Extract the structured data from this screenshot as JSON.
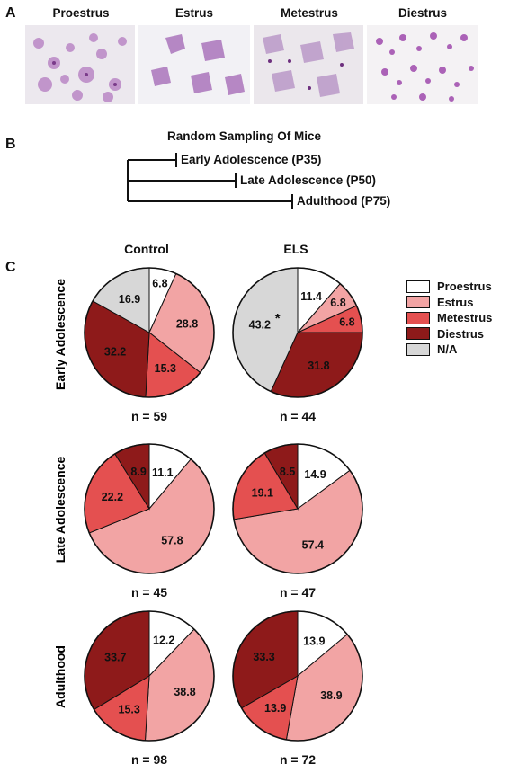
{
  "panel_a": {
    "letter": "A",
    "stages": [
      "Proestrus",
      "Estrus",
      "Metestrus",
      "Diestrus"
    ]
  },
  "panel_b": {
    "letter": "B",
    "title": "Random Sampling Of Mice",
    "groups": [
      "Early Adolescence (P35)",
      "Late Adolescence (P50)",
      "Adulthood (P75)"
    ]
  },
  "panel_c": {
    "letter": "C",
    "col_headers": [
      "Control",
      "ELS"
    ],
    "row_labels": [
      "Early Adolescence",
      "Late Adolescence",
      "Adulthood"
    ],
    "legend": [
      {
        "label": "Proestrus",
        "color": "#ffffff"
      },
      {
        "label": "Estrus",
        "color": "#f2a4a4"
      },
      {
        "label": "Metestrus",
        "color": "#e45050"
      },
      {
        "label": "Diestrus",
        "color": "#8e1a1a"
      },
      {
        "label": "N/A",
        "color": "#d7d7d7"
      }
    ],
    "significance_marker": "*"
  },
  "chart_data": [
    {
      "type": "pie",
      "group": "Control",
      "stage": "Early Adolescence",
      "n_label": "n = 59",
      "labels": [
        "Proestrus",
        "Estrus",
        "Metestrus",
        "Diestrus",
        "N/A"
      ],
      "values": [
        6.8,
        28.8,
        15.3,
        32.2,
        16.9
      ]
    },
    {
      "type": "pie",
      "group": "ELS",
      "stage": "Early Adolescence",
      "n_label": "n = 44",
      "labels": [
        "Proestrus",
        "Estrus",
        "Metestrus",
        "Diestrus",
        "N/A"
      ],
      "values": [
        11.4,
        6.8,
        6.8,
        31.8,
        43.2
      ],
      "annotation": "*"
    },
    {
      "type": "pie",
      "group": "Control",
      "stage": "Late Adolescence",
      "n_label": "n = 45",
      "labels": [
        "Proestrus",
        "Estrus",
        "Metestrus",
        "Diestrus"
      ],
      "values": [
        11.1,
        57.8,
        22.2,
        8.9
      ]
    },
    {
      "type": "pie",
      "group": "ELS",
      "stage": "Late Adolescence",
      "n_label": "n = 47",
      "labels": [
        "Proestrus",
        "Estrus",
        "Metestrus",
        "Diestrus"
      ],
      "values": [
        14.9,
        57.4,
        19.1,
        8.5
      ]
    },
    {
      "type": "pie",
      "group": "Control",
      "stage": "Adulthood",
      "n_label": "n = 98",
      "labels": [
        "Proestrus",
        "Estrus",
        "Metestrus",
        "Diestrus"
      ],
      "values": [
        12.2,
        38.8,
        15.3,
        33.7
      ]
    },
    {
      "type": "pie",
      "group": "ELS",
      "stage": "Adulthood",
      "n_label": "n = 72",
      "labels": [
        "Proestrus",
        "Estrus",
        "Metestrus",
        "Diestrus"
      ],
      "values": [
        13.9,
        38.9,
        13.9,
        33.3
      ]
    }
  ]
}
